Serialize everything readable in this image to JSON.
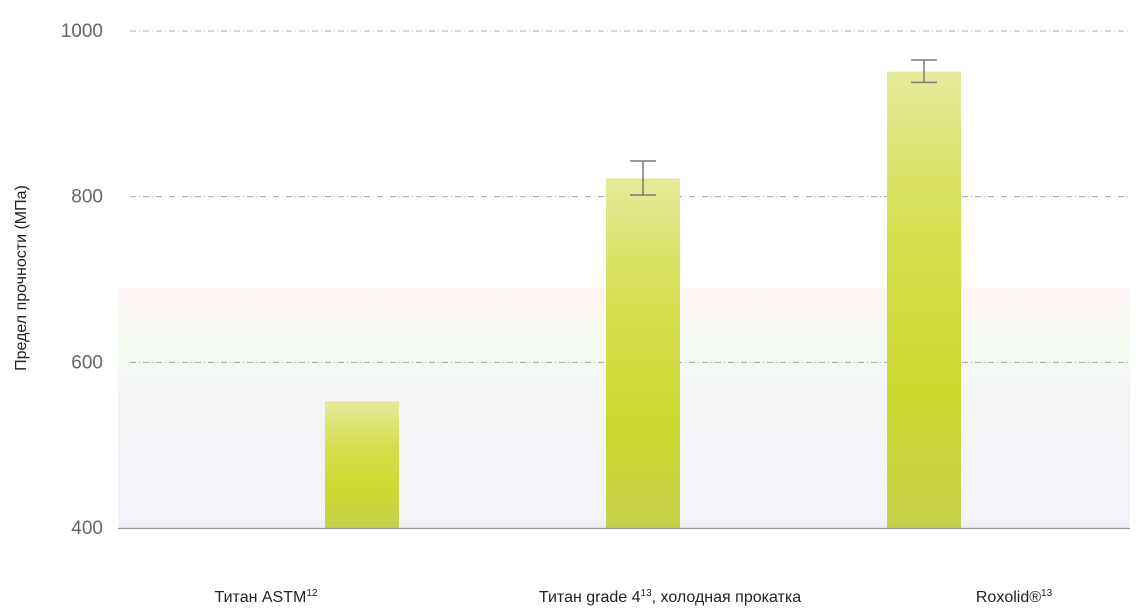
{
  "chart_data": {
    "type": "bar",
    "ylabel": "Предел прочности (МПа)",
    "xlabel": "",
    "ylim": [
      400,
      1000
    ],
    "yticks": [
      400,
      600,
      800,
      1000
    ],
    "grid": true,
    "categories": [
      {
        "label": "Титан ASTM",
        "sup": "12",
        "suffix": ""
      },
      {
        "label": "Титан grade 4",
        "sup": "13",
        "suffix": ", холодная прокатка"
      },
      {
        "label": "Roxolid®",
        "sup": "13",
        "suffix": ""
      }
    ],
    "values": [
      553,
      822,
      951
    ],
    "error_bars": [
      null,
      [
        802,
        843
      ],
      [
        938,
        965
      ]
    ],
    "colors": {
      "bar_top": "#dde57a",
      "bar_mid": "#cfdc3a",
      "bar_bottom": "#c6d149",
      "grid": "#a8a8a8",
      "axis": "#9a9a9a",
      "error": "#7a7a7a",
      "tick_text": "#666666"
    }
  }
}
